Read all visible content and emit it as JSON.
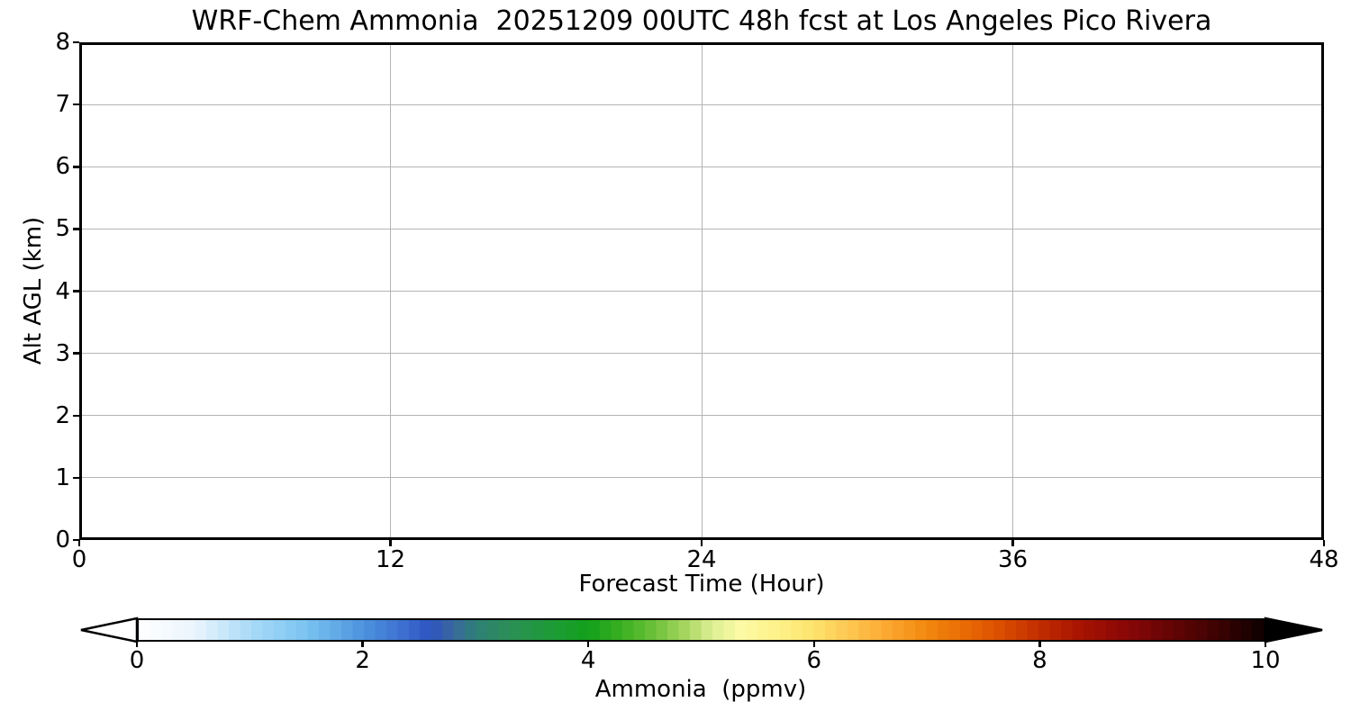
{
  "chart_data": {
    "type": "heatmap",
    "title": "WRF-Chem Ammonia  20251209 00UTC 48h fcst at Los Angeles Pico Rivera",
    "xlabel": "Forecast Time (Hour)",
    "ylabel": "Alt AGL (km)",
    "xlim": [
      0,
      48
    ],
    "ylim": [
      0,
      8
    ],
    "x_ticks": [
      0,
      12,
      24,
      36,
      48
    ],
    "y_ticks": [
      0,
      1,
      2,
      3,
      4,
      5,
      6,
      7,
      8
    ],
    "grid": true,
    "series": [],
    "plot_area_empty": true,
    "colorbar": {
      "label": "Ammonia  (ppmv)",
      "ticks": [
        0,
        2,
        4,
        6,
        8,
        10
      ],
      "range": [
        0,
        10
      ],
      "extend": "both",
      "n_segments": 100,
      "stops": [
        [
          0.0,
          "#ffffff"
        ],
        [
          0.5,
          "#eaf5fc"
        ],
        [
          1.0,
          "#a8daf8"
        ],
        [
          1.5,
          "#79c3f1"
        ],
        [
          2.0,
          "#4b92dd"
        ],
        [
          2.3,
          "#3f74d2"
        ],
        [
          2.6,
          "#2d54c0"
        ],
        [
          2.8,
          "#3a689e"
        ],
        [
          3.0,
          "#2e7f78"
        ],
        [
          3.3,
          "#2b8f55"
        ],
        [
          3.7,
          "#1d9c35"
        ],
        [
          4.0,
          "#12a01b"
        ],
        [
          4.3,
          "#3bb022"
        ],
        [
          4.6,
          "#6fc23a"
        ],
        [
          4.9,
          "#b0d967"
        ],
        [
          5.1,
          "#ddef94"
        ],
        [
          5.35,
          "#fdfaa5"
        ],
        [
          5.7,
          "#fdf188"
        ],
        [
          6.0,
          "#fde26c"
        ],
        [
          6.3,
          "#fdc853"
        ],
        [
          6.7,
          "#fba42c"
        ],
        [
          7.0,
          "#f1880e"
        ],
        [
          7.4,
          "#e76603"
        ],
        [
          7.7,
          "#d84a00"
        ],
        [
          8.0,
          "#c22d00"
        ],
        [
          8.4,
          "#a51200"
        ],
        [
          8.8,
          "#870707"
        ],
        [
          9.2,
          "#630404"
        ],
        [
          9.6,
          "#3c0202"
        ],
        [
          10.0,
          "#0d0000"
        ]
      ]
    }
  },
  "colors": {
    "background": "#ffffff",
    "axis": "#000000",
    "grid": "#b4b4b4",
    "text": "#000000",
    "colorbar_under_arrow": "#ffffff",
    "colorbar_over_arrow": "#000000"
  }
}
